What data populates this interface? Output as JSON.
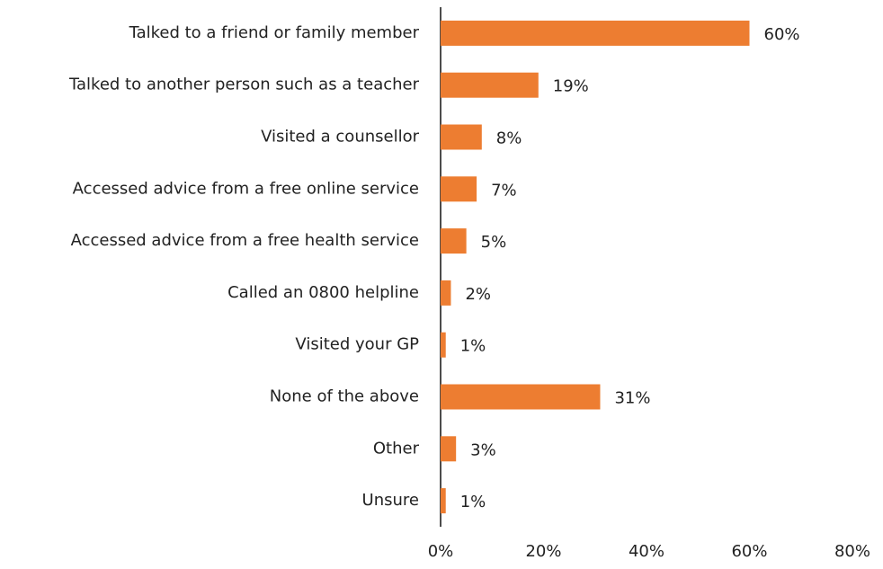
{
  "chart_data": {
    "type": "hbar",
    "categories": [
      "Talked to a friend or family member",
      "Talked to another person such as a teacher",
      "Visited a counsellor",
      "Accessed advice from a free online service",
      "Accessed advice from a free health service",
      "Called an 0800 helpline",
      "Visited your GP",
      "None of the above",
      "Other",
      "Unsure"
    ],
    "values": [
      60,
      19,
      8,
      7,
      5,
      2,
      1,
      31,
      3,
      1
    ],
    "value_labels": [
      "60%",
      "19%",
      "8%",
      "7%",
      "5%",
      "2%",
      "1%",
      "31%",
      "3%",
      "1%"
    ],
    "color": "#ED7D31",
    "xlim": [
      0,
      80
    ],
    "xticks": [
      {
        "value": 0,
        "label": "0%"
      },
      {
        "value": 20,
        "label": "20%"
      },
      {
        "value": 40,
        "label": "40%"
      },
      {
        "value": 60,
        "label": "60%"
      },
      {
        "value": 80,
        "label": "80%"
      }
    ],
    "grid": false
  }
}
